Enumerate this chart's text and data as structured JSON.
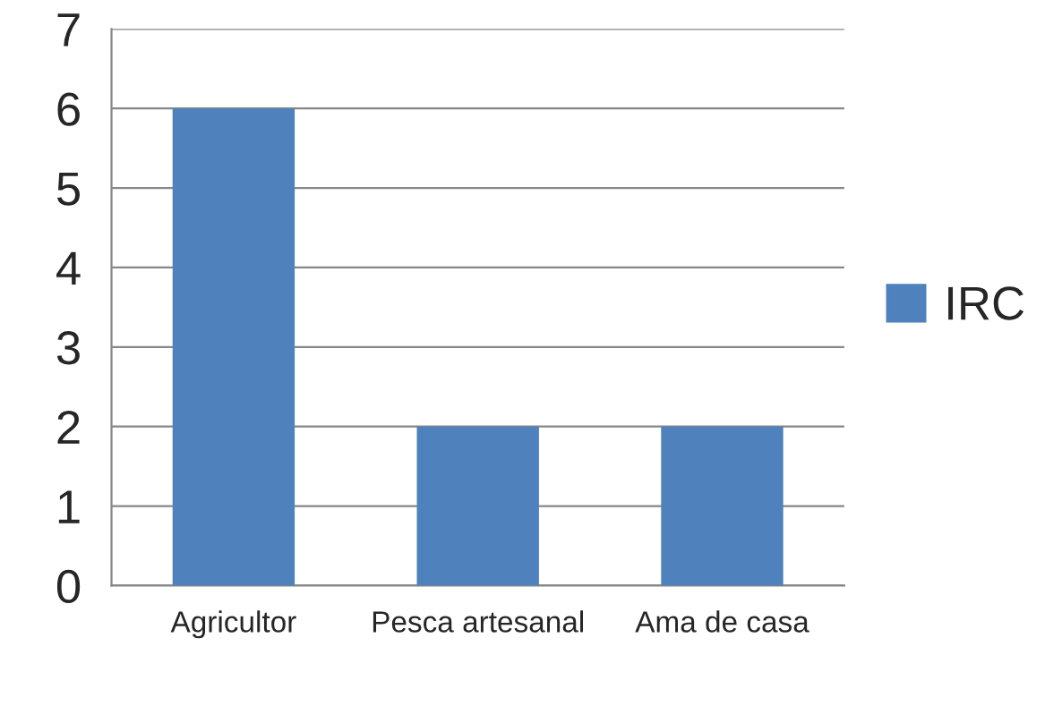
{
  "chart_data": {
    "type": "bar",
    "categories": [
      "Agricultor",
      "Pesca artesanal",
      "Ama de casa"
    ],
    "series": [
      {
        "name": "IRC",
        "color": "#4f81bd",
        "values": [
          6,
          2,
          2
        ]
      }
    ],
    "ylim": [
      0,
      7
    ],
    "yticks": [
      0,
      1,
      2,
      3,
      4,
      5,
      6,
      7
    ],
    "grid": "y",
    "legend": "right"
  }
}
